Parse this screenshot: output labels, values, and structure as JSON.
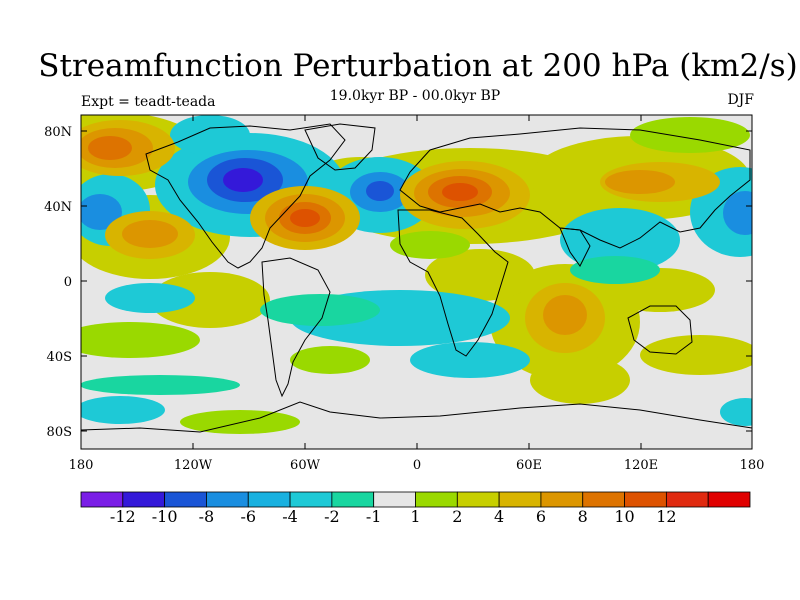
{
  "title": "Streamfunction Perturbation at 200 hPa (km2/s)",
  "subtitle": "19.0kyr BP - 00.0kyr BP",
  "left_label": "Expt = teadt-teada",
  "right_label": "DJF",
  "map": {
    "lat_labels": [
      "80N",
      "40N",
      "0",
      "40S",
      "80S"
    ],
    "lon_labels": [
      "180",
      "120W",
      "60W",
      "0",
      "60E",
      "120E",
      "180"
    ]
  },
  "colorbar": {
    "colors": [
      "#7a1ee6",
      "#3419d9",
      "#1a55d6",
      "#1a8ee0",
      "#19b1e0",
      "#1ec9d6",
      "#19d6a0",
      "#e6e6e6",
      "#9ad900",
      "#c7cf00",
      "#d8b400",
      "#dc9600",
      "#dd7300",
      "#dd5200",
      "#e02a10",
      "#e00000"
    ],
    "labels": [
      "-12",
      "-10",
      "-8",
      "-6",
      "-4",
      "-2",
      "-1",
      "1",
      "2",
      "4",
      "6",
      "8",
      "10",
      "12"
    ]
  },
  "colors": {
    "background": "#ffffff",
    "neutral": "#e6e6e6",
    "coastline": "#000000"
  }
}
